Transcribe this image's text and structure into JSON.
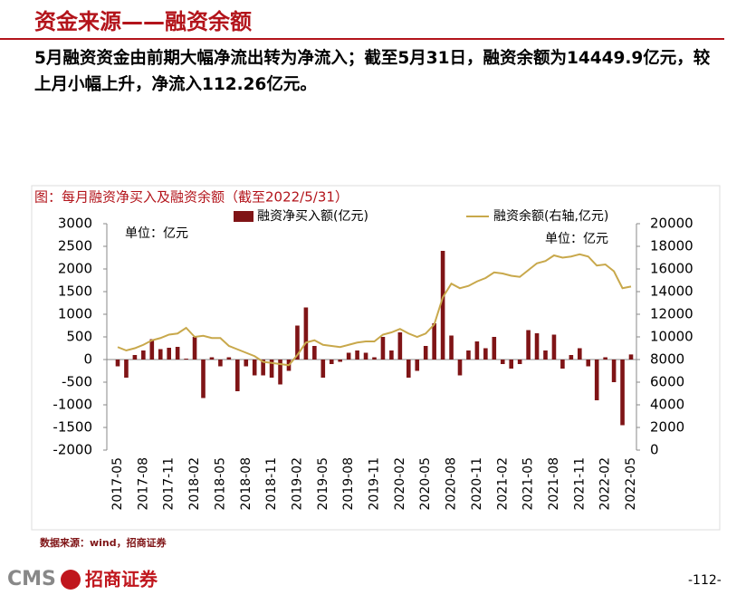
{
  "header": {
    "title": "资金来源——融资余额",
    "summary": "5月融资资金由前期大幅净流出转为净流入；截至5月31日，融资余额为14449.9亿元，较上月小幅上升，净流入112.26亿元。"
  },
  "chart_data": {
    "type": "bar_line",
    "title": "图：每月融资净买入及融资余额（截至2022/5/31）",
    "y_unit": "单位：亿元",
    "y2_unit": "单位：亿元",
    "categories": [
      "2017-05",
      null,
      null,
      "2017-08",
      null,
      null,
      "2017-11",
      null,
      null,
      "2018-02",
      null,
      null,
      "2018-05",
      null,
      null,
      "2018-08",
      null,
      null,
      "2018-11",
      null,
      null,
      "2019-02",
      null,
      null,
      "2019-05",
      null,
      null,
      "2019-08",
      null,
      null,
      "2019-11",
      null,
      null,
      "2020-02",
      null,
      null,
      "2020-05",
      null,
      null,
      "2020-08",
      null,
      null,
      "2020-11",
      null,
      null,
      "2021-02",
      null,
      null,
      "2021-05",
      null,
      null,
      "2021-08",
      null,
      null,
      "2021-11",
      null,
      null,
      "2022-02",
      null,
      null,
      "2022-05"
    ],
    "series": [
      {
        "name": "融资净买入额(亿元)",
        "type": "bar",
        "color": "#7f1416",
        "values": [
          -150,
          -400,
          100,
          200,
          450,
          230,
          260,
          280,
          20,
          500,
          -850,
          50,
          -150,
          50,
          -700,
          -150,
          -350,
          -350,
          -400,
          -550,
          -250,
          750,
          1150,
          300,
          -400,
          -100,
          -50,
          150,
          200,
          150,
          50,
          500,
          200,
          600,
          -400,
          -250,
          300,
          800,
          2400,
          530,
          -350,
          200,
          400,
          250,
          500,
          -100,
          -200,
          -100,
          650,
          580,
          200,
          550,
          -200,
          100,
          250,
          -150,
          -900,
          50,
          -500,
          -1450,
          112.26
        ]
      },
      {
        "name": "融资余额(右轴,亿元)",
        "type": "line",
        "axis": "y2",
        "color": "#c8a84b",
        "values": [
          9100,
          8800,
          9000,
          9300,
          9700,
          9900,
          10200,
          10300,
          10800,
          10000,
          10100,
          9900,
          9900,
          9200,
          8900,
          8600,
          8300,
          7800,
          7700,
          7600,
          7500,
          8400,
          9500,
          9700,
          9300,
          9200,
          9100,
          9300,
          9500,
          9600,
          9600,
          10200,
          10400,
          10700,
          10300,
          10000,
          10300,
          11100,
          13500,
          14700,
          14300,
          14500,
          14900,
          15200,
          15700,
          15600,
          15400,
          15300,
          15900,
          16500,
          16700,
          17200,
          17000,
          17100,
          17300,
          17100,
          16300,
          16400,
          15800,
          14300,
          14449.9
        ]
      }
    ],
    "ylim": [
      -2000,
      3000
    ],
    "yticks": [
      -2000,
      -1500,
      -1000,
      -500,
      0,
      500,
      1000,
      1500,
      2000,
      2500,
      3000
    ],
    "y2lim": [
      0,
      20000
    ],
    "y2ticks": [
      0,
      2000,
      4000,
      6000,
      8000,
      10000,
      12000,
      14000,
      16000,
      18000,
      20000
    ],
    "source": "数据来源：wind，招商证券"
  },
  "footer": {
    "brand": "CMS",
    "brand_cn": "招商证券",
    "page": "-112-"
  }
}
